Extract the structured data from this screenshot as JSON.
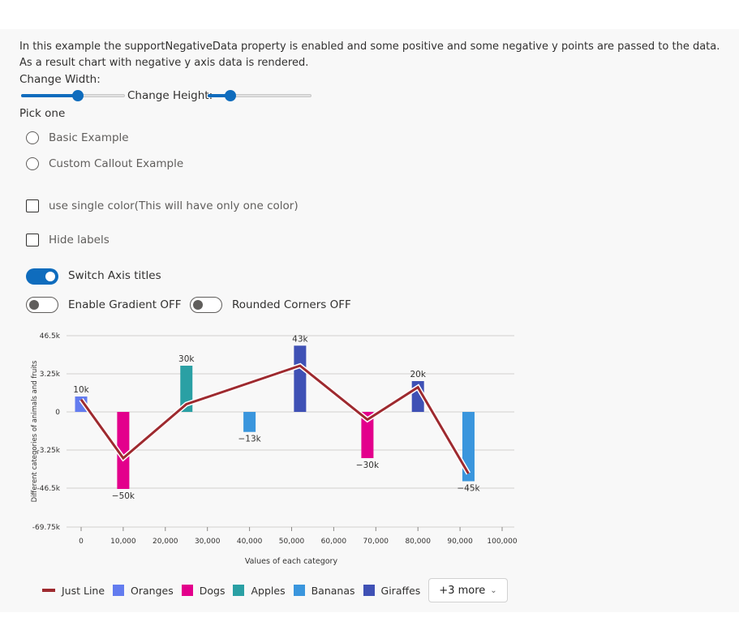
{
  "description": "In this example the supportNegativeData property is enabled and some positive and some negative y points are passed to the data. As a result chart with negative y axis data is rendered.",
  "controls": {
    "change_width_label": "Change Width:",
    "change_width_value": 0.55,
    "change_height_label": "Change Height:",
    "change_height_value": 0.22,
    "pick_one_label": "Pick one",
    "radio_options": [
      "Basic Example",
      "Custom Callout Example"
    ],
    "single_color_label": "use single color(This will have only one color)",
    "hide_labels_label": "Hide labels",
    "switch_axis_titles_label": "Switch Axis titles",
    "enable_gradient_label": "Enable Gradient OFF",
    "rounded_corners_label": "Rounded Corners OFF"
  },
  "legend": {
    "items": [
      {
        "name": "Just Line",
        "color": "#9e2a2f",
        "kind": "line"
      },
      {
        "name": "Oranges",
        "color": "#637cef",
        "kind": "box"
      },
      {
        "name": "Dogs",
        "color": "#e3008c",
        "kind": "box"
      },
      {
        "name": "Apples",
        "color": "#2aa0a4",
        "kind": "box"
      },
      {
        "name": "Bananas",
        "color": "#3a96dd",
        "kind": "box"
      },
      {
        "name": "Giraffes",
        "color": "#3f51b5",
        "kind": "box"
      }
    ],
    "more_label": "+3 more"
  },
  "chart_data": {
    "type": "bar",
    "xlabel": "Values of each category",
    "ylabel": "Different categories of animals and fruits",
    "xlim": [
      0,
      100000
    ],
    "x_ticks": [
      "0",
      "10,000",
      "20,000",
      "30,000",
      "40,000",
      "50,000",
      "60,000",
      "70,000",
      "80,000",
      "90,000",
      "100,000"
    ],
    "y_ticks": [
      "46.5k",
      "3.25k",
      "0",
      "-3.25k",
      "-46.5k",
      "-69.75k"
    ],
    "bars": [
      {
        "series": "Oranges",
        "x": 0,
        "y": 10000,
        "label": "10k",
        "color": "#637cef"
      },
      {
        "series": "Dogs",
        "x": 10000,
        "y": -50000,
        "label": "−50k",
        "color": "#e3008c"
      },
      {
        "series": "Apples",
        "x": 25000,
        "y": 30000,
        "label": "30k",
        "color": "#2aa0a4"
      },
      {
        "series": "Bananas",
        "x": 40000,
        "y": -13000,
        "label": "−13k",
        "color": "#3a96dd"
      },
      {
        "series": "Giraffes",
        "x": 52000,
        "y": 43000,
        "label": "43k",
        "color": "#3f51b5"
      },
      {
        "series": "Dogs",
        "x": 68000,
        "y": -30000,
        "label": "−30k",
        "color": "#e3008c"
      },
      {
        "series": "Giraffes",
        "x": 80000,
        "y": 20000,
        "label": "20k",
        "color": "#3f51b5"
      },
      {
        "series": "Bananas",
        "x": 92000,
        "y": -45000,
        "label": "−45k",
        "color": "#3a96dd"
      }
    ],
    "line": {
      "name": "Just Line",
      "color": "#9e2a2f",
      "points": [
        [
          0,
          8000
        ],
        [
          10000,
          -30000
        ],
        [
          25000,
          5000
        ],
        [
          52000,
          30000
        ],
        [
          68000,
          -5000
        ],
        [
          80000,
          16000
        ],
        [
          92000,
          -40000
        ]
      ]
    },
    "grid": true
  }
}
